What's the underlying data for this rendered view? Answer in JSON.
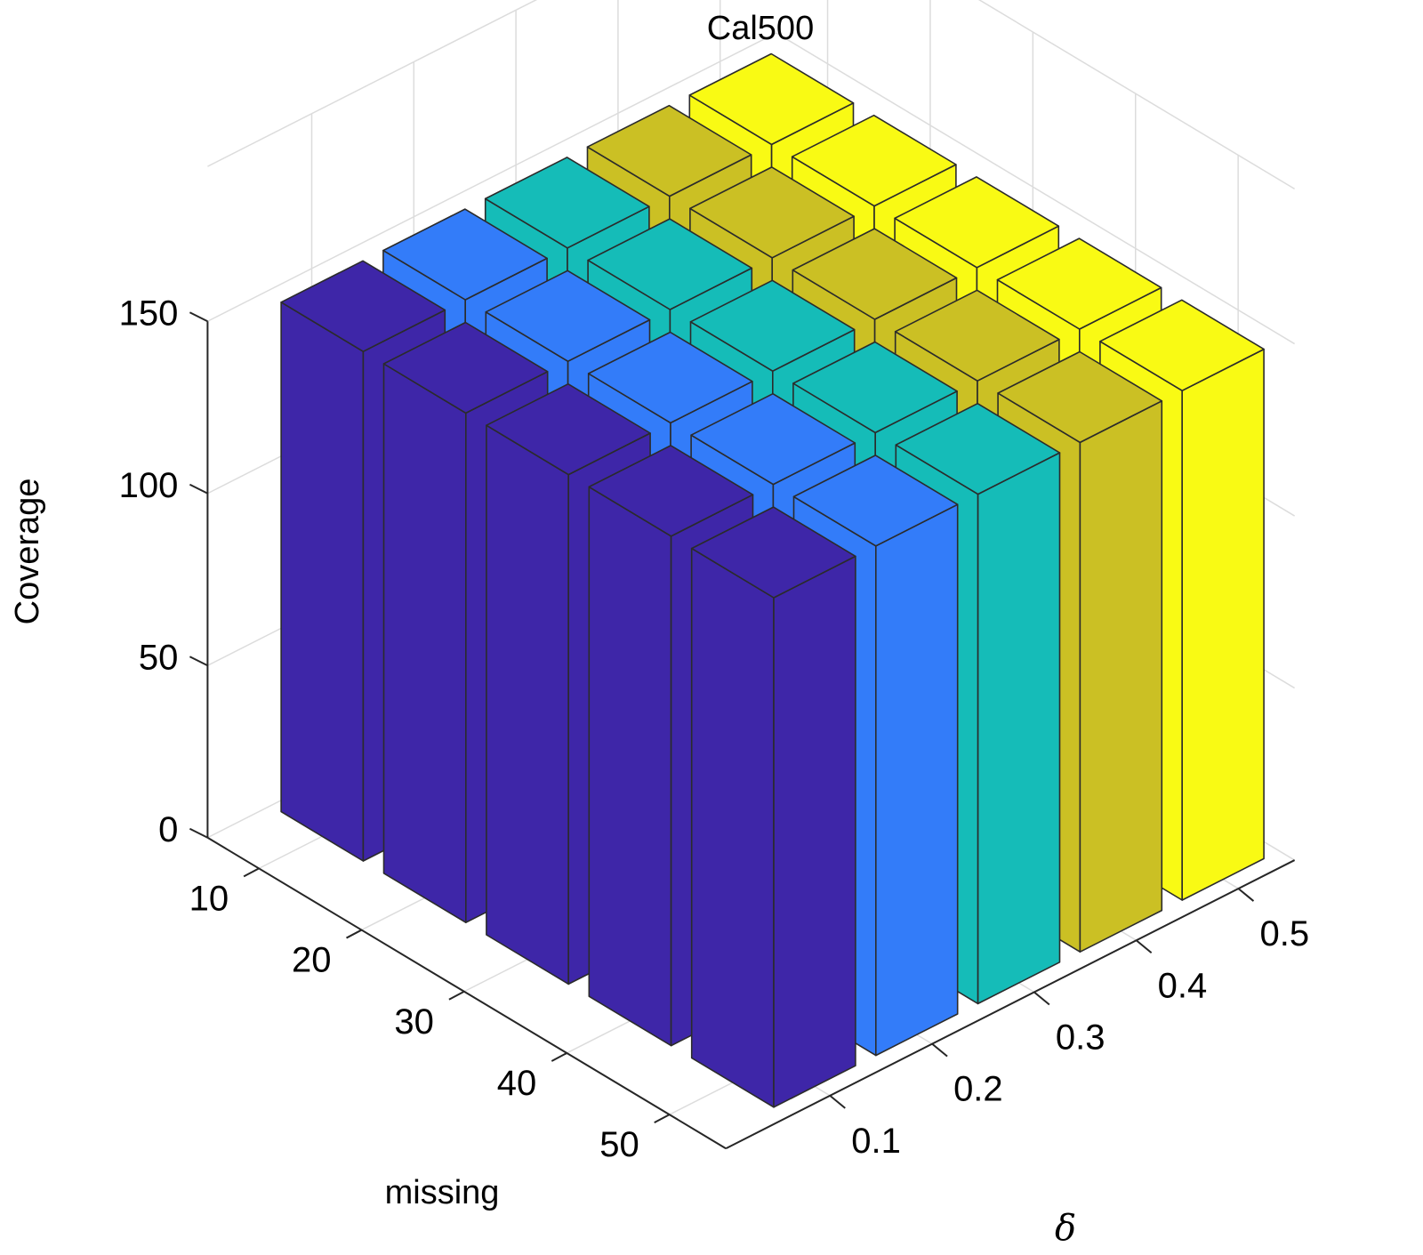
{
  "chart_data": {
    "type": "bar3d",
    "title": "Cal500",
    "zlabel": "Coverage",
    "xlabel": "missing",
    "ylabel": "δ",
    "missing_values": [
      "10",
      "20",
      "30",
      "40",
      "50"
    ],
    "delta_values": [
      "0.1",
      "0.2",
      "0.3",
      "0.4",
      "0.5"
    ],
    "z_ticks": [
      "0",
      "50",
      "100",
      "150"
    ],
    "zlim": [
      0,
      150
    ],
    "grid": true,
    "series": [
      {
        "delta": "0.1",
        "color": "#3e26a8",
        "values": [
          148,
          148,
          148,
          148,
          148
        ]
      },
      {
        "delta": "0.2",
        "color": "#337cf9",
        "values": [
          148,
          148,
          148,
          148,
          148
        ]
      },
      {
        "delta": "0.3",
        "color": "#15bcb8",
        "values": [
          148,
          148,
          148,
          148,
          148
        ]
      },
      {
        "delta": "0.4",
        "color": "#cbc024",
        "values": [
          148,
          148,
          148,
          148,
          148
        ]
      },
      {
        "delta": "0.5",
        "color": "#f9fa14",
        "values": [
          148,
          148,
          148,
          148,
          148
        ]
      }
    ]
  }
}
